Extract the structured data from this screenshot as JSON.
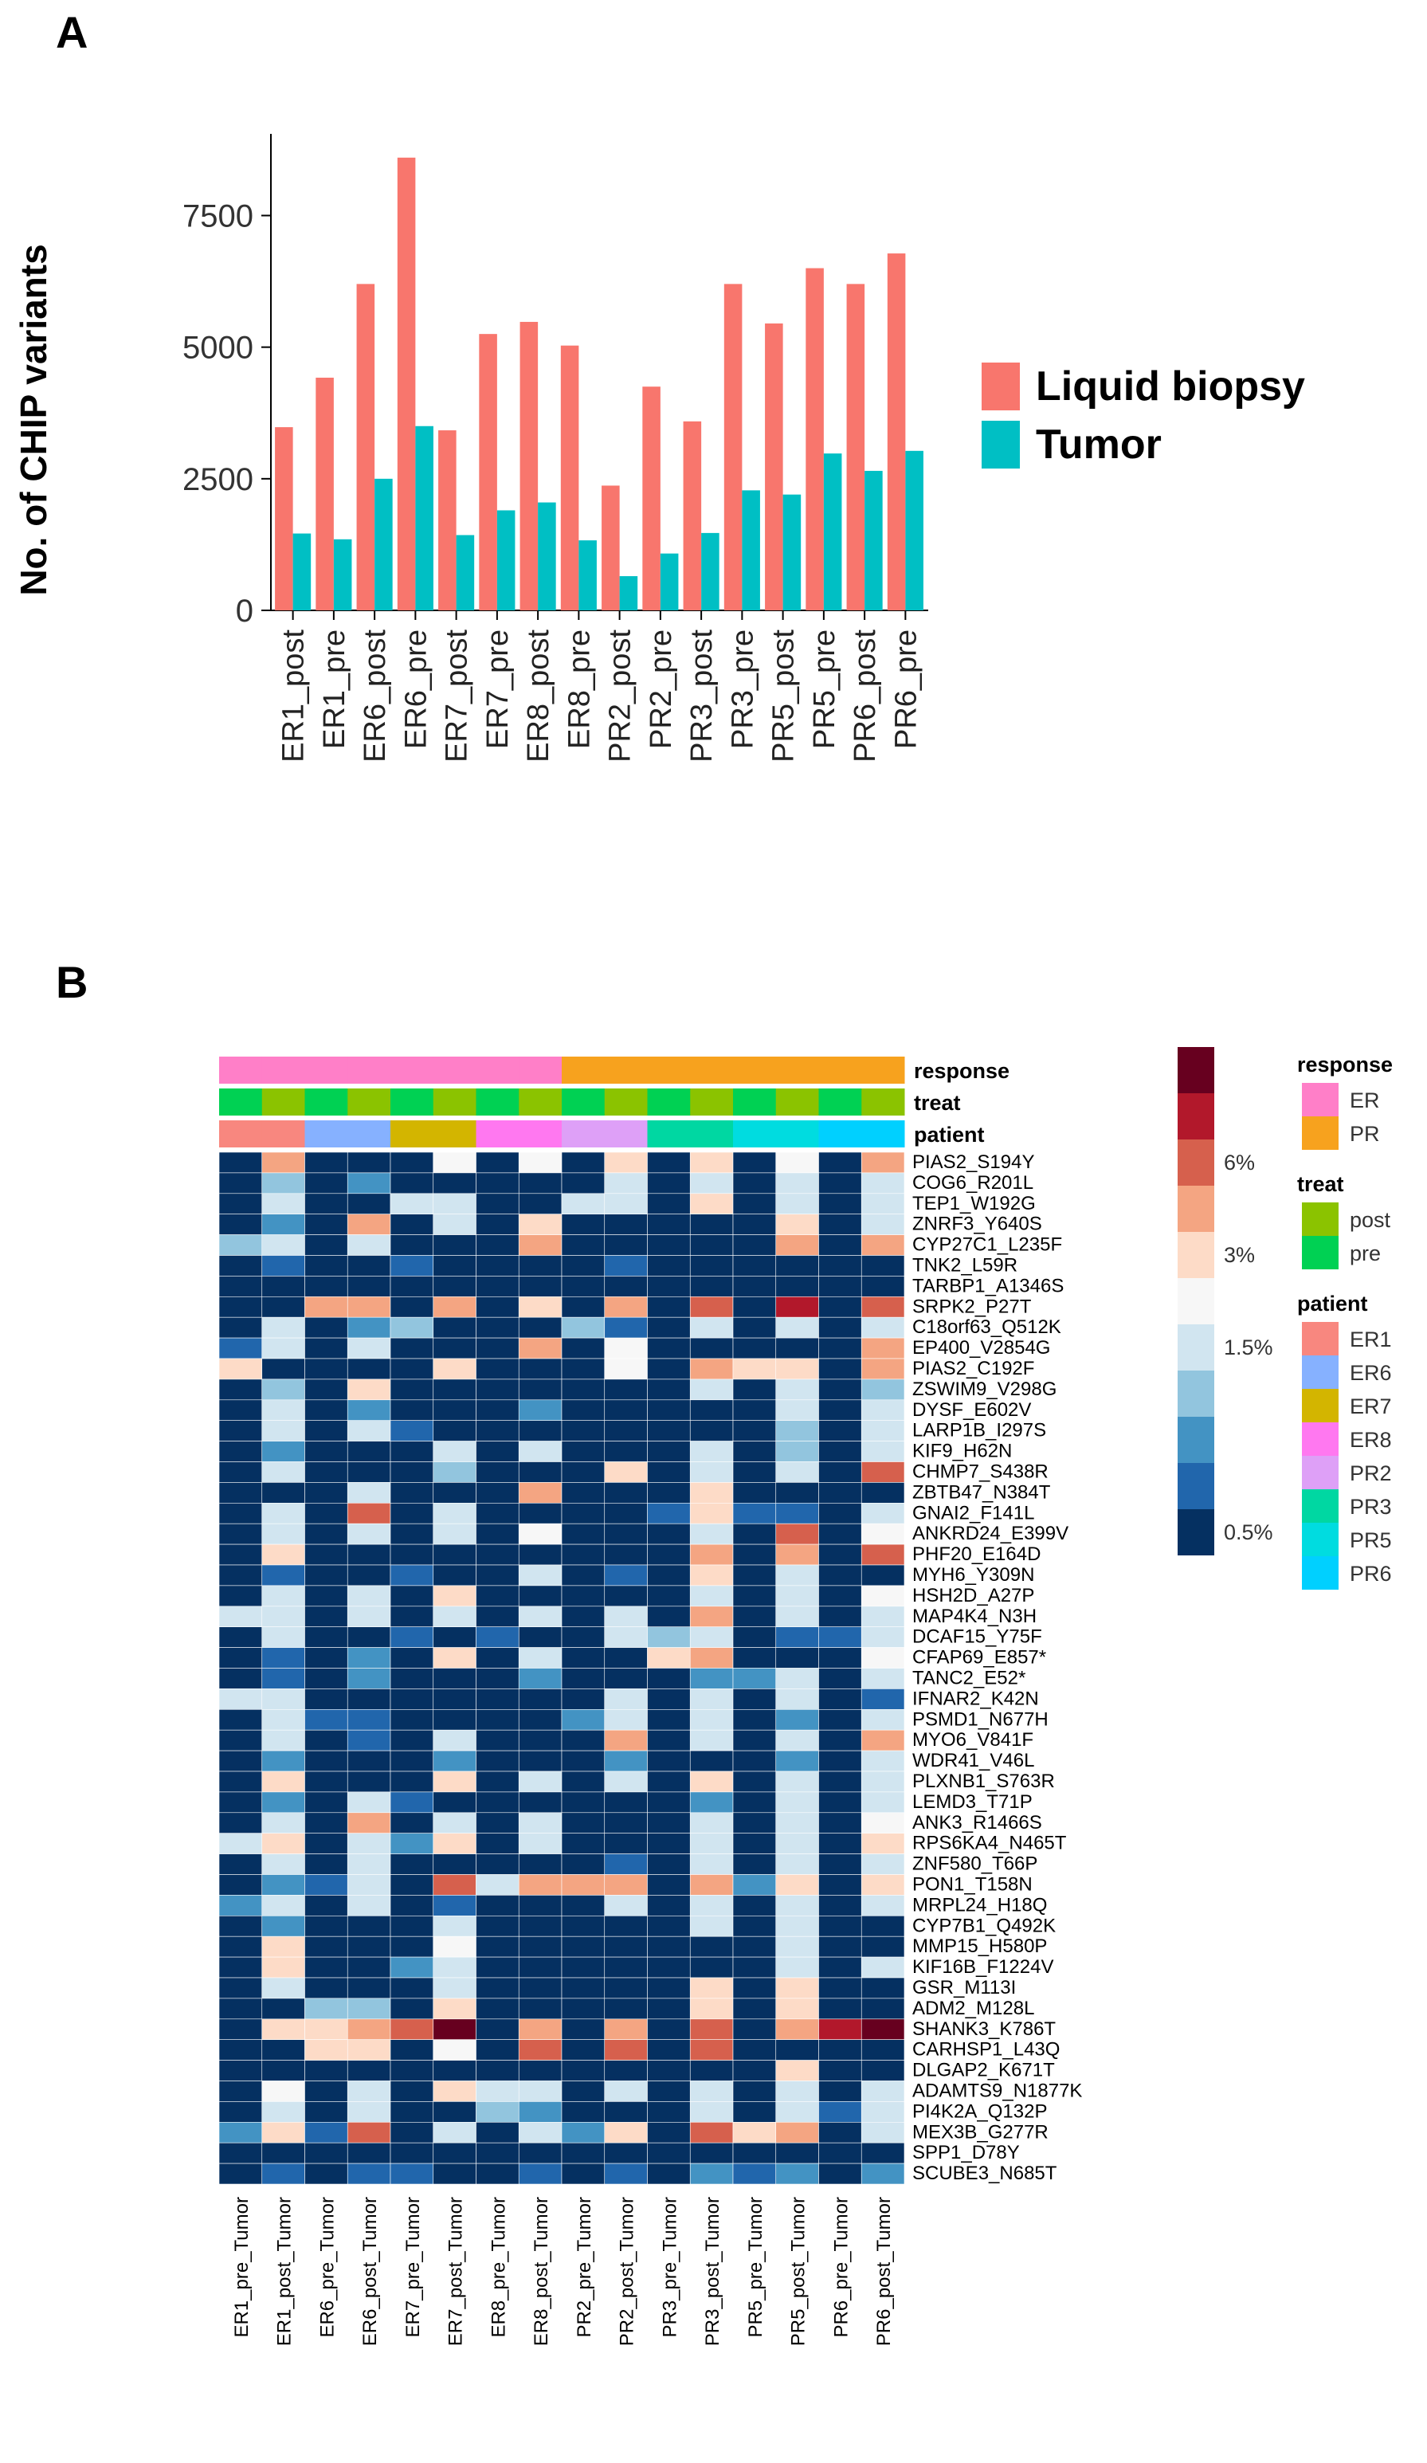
{
  "panel_a": {
    "label": "A",
    "ylabel": "No. of CHIP variants",
    "legend": [
      {
        "name": "Liquid biopsy",
        "color": "#F8766D"
      },
      {
        "name": "Tumor",
        "color": "#00BFC4"
      }
    ]
  },
  "panel_b": {
    "label": "B",
    "annotation_tracks": [
      "response",
      "treat",
      "patient"
    ],
    "legend_groups": [
      {
        "title": "response",
        "items": [
          {
            "label": "ER",
            "color": "#FF7FC8"
          },
          {
            "label": "PR",
            "color": "#F7A21E"
          }
        ]
      },
      {
        "title": "treat",
        "items": [
          {
            "label": "post",
            "color": "#8BC300"
          },
          {
            "label": "pre",
            "color": "#00D153"
          }
        ]
      },
      {
        "title": "patient",
        "items": [
          {
            "label": "ER1",
            "color": "#F8877F"
          },
          {
            "label": "ER6",
            "color": "#86B1FF"
          },
          {
            "label": "ER7",
            "color": "#D3B500"
          },
          {
            "label": "ER8",
            "color": "#FF78F0"
          },
          {
            "label": "PR2",
            "color": "#DEA0F7"
          },
          {
            "label": "PR3",
            "color": "#00D7A2"
          },
          {
            "label": "PR5",
            "color": "#00DCE0"
          },
          {
            "label": "PR6",
            "color": "#00D0FF"
          }
        ]
      }
    ],
    "color_scale": {
      "colors": [
        "#67001F",
        "#B2182B",
        "#D6604D",
        "#F4A582",
        "#FDDBC7",
        "#F7F7F7",
        "#D1E5F0",
        "#92C5DE",
        "#4393C3",
        "#2166AC",
        "#053061"
      ],
      "tick_labels": [
        "6%",
        "3%",
        "1.5%",
        "0.5%"
      ]
    }
  },
  "chart_data": [
    {
      "type": "bar",
      "title": "",
      "xlabel": "",
      "ylabel": "No. of CHIP variants",
      "ylim": [
        0,
        8900
      ],
      "yticks": [
        0,
        2500,
        5000,
        7500
      ],
      "categories": [
        "ER1_post",
        "ER1_pre",
        "ER6_post",
        "ER6_pre",
        "ER7_post",
        "ER7_pre",
        "ER8_post",
        "ER8_pre",
        "PR2_post",
        "PR2_pre",
        "PR3_post",
        "PR3_pre",
        "PR5_post",
        "PR5_pre",
        "PR6_post",
        "PR6_pre"
      ],
      "series": [
        {
          "name": "Liquid biopsy",
          "values": [
            3480,
            4420,
            6200,
            8600,
            3420,
            5250,
            5480,
            5030,
            2370,
            4250,
            3590,
            6200,
            5450,
            6500,
            6200,
            6780
          ]
        },
        {
          "name": "Tumor",
          "values": [
            1460,
            1350,
            2500,
            3500,
            1430,
            1900,
            2050,
            1330,
            650,
            1080,
            1470,
            2280,
            2200,
            2980,
            2650,
            3030
          ]
        }
      ]
    },
    {
      "type": "heatmap",
      "columns": [
        "ER1_pre_Tumor",
        "ER1_post_Tumor",
        "ER6_pre_Tumor",
        "ER6_post_Tumor",
        "ER7_pre_Tumor",
        "ER7_post_Tumor",
        "ER8_pre_Tumor",
        "ER8_post_Tumor",
        "PR2_pre_Tumor",
        "PR2_post_Tumor",
        "PR3_pre_Tumor",
        "PR3_post_Tumor",
        "PR5_pre_Tumor",
        "PR5_post_Tumor",
        "PR6_pre_Tumor",
        "PR6_post_Tumor"
      ],
      "annotations": {
        "response": [
          "ER",
          "ER",
          "ER",
          "ER",
          "ER",
          "ER",
          "ER",
          "ER",
          "PR",
          "PR",
          "PR",
          "PR",
          "PR",
          "PR",
          "PR",
          "PR"
        ],
        "treat": [
          "pre",
          "post",
          "pre",
          "post",
          "pre",
          "post",
          "pre",
          "post",
          "pre",
          "post",
          "pre",
          "post",
          "pre",
          "post",
          "pre",
          "post"
        ],
        "patient": [
          "ER1",
          "ER1",
          "ER6",
          "ER6",
          "ER7",
          "ER7",
          "ER8",
          "ER8",
          "PR2",
          "PR2",
          "PR3",
          "PR3",
          "PR5",
          "PR5",
          "PR6",
          "PR6"
        ]
      },
      "rows": [
        "PIAS2_S194Y",
        "COG6_R201L",
        "TEP1_W192G",
        "ZNRF3_Y640S",
        "CYP27C1_L235F",
        "TNK2_L59R",
        "TARBP1_A1346S",
        "SRPK2_P27T",
        "C18orf63_Q512K",
        "EP400_V2854G",
        "PIAS2_C192F",
        "ZSWIM9_V298G",
        "DYSF_E602V",
        "LARP1B_I297S",
        "KIF9_H62N",
        "CHMP7_S438R",
        "ZBTB47_N384T",
        "GNAI2_F141L",
        "ANKRD24_E399V",
        "PHF20_E164D",
        "MYH6_Y309N",
        "HSH2D_A27P",
        "MAP4K4_N3H",
        "DCAF15_Y75F",
        "CFAP69_E857*",
        "TANC2_E52*",
        "IFNAR2_K42N",
        "PSMD1_N677H",
        "MYO6_V841F",
        "WDR41_V46L",
        "PLXNB1_S763R",
        "LEMD3_T71P",
        "ANK3_R1466S",
        "RPS6KA4_N465T",
        "ZNF580_T66P",
        "PON1_T158N",
        "MRPL24_H18Q",
        "CYP7B1_Q492K",
        "MMP15_H580P",
        "KIF16B_F1224V",
        "GSR_M113I",
        "ADM2_M128L",
        "SHANK3_K786T",
        "CARHSP1_L43Q",
        "DLGAP2_K671T",
        "ADAMTS9_N1877K",
        "PI4K2A_Q132P",
        "MEX3B_G277R",
        "SPP1_D78Y",
        "SCUBE3_N685T"
      ],
      "color_level_note": "values are color-scale levels 0-10 (0 = darkest red, highest VAF; 10 = dark navy, lowest VAF)",
      "values": [
        [
          10,
          3,
          10,
          10,
          10,
          5,
          10,
          5,
          10,
          4,
          10,
          4,
          10,
          5,
          10,
          3
        ],
        [
          10,
          7,
          10,
          8,
          10,
          10,
          10,
          10,
          10,
          6,
          10,
          6,
          10,
          6,
          10,
          6
        ],
        [
          10,
          6,
          10,
          10,
          6,
          6,
          10,
          10,
          6,
          6,
          10,
          4,
          10,
          6,
          10,
          6
        ],
        [
          10,
          8,
          10,
          3,
          10,
          6,
          10,
          4,
          10,
          10,
          10,
          10,
          10,
          4,
          10,
          6
        ],
        [
          7,
          6,
          10,
          6,
          10,
          10,
          10,
          3,
          10,
          10,
          10,
          10,
          10,
          3,
          10,
          3
        ],
        [
          10,
          9,
          10,
          10,
          9,
          10,
          10,
          10,
          10,
          9,
          10,
          10,
          10,
          10,
          10,
          10
        ],
        [
          10,
          10,
          10,
          10,
          10,
          10,
          10,
          10,
          10,
          10,
          10,
          10,
          10,
          10,
          10,
          10
        ],
        [
          10,
          10,
          3,
          3,
          10,
          3,
          10,
          4,
          10,
          3,
          10,
          2,
          10,
          1,
          10,
          2
        ],
        [
          10,
          6,
          10,
          8,
          7,
          10,
          10,
          10,
          7,
          9,
          10,
          6,
          10,
          6,
          10,
          6
        ],
        [
          9,
          6,
          10,
          6,
          10,
          10,
          10,
          3,
          10,
          5,
          10,
          10,
          10,
          10,
          10,
          3
        ],
        [
          4,
          10,
          10,
          10,
          10,
          4,
          10,
          10,
          10,
          5,
          10,
          3,
          4,
          4,
          10,
          3
        ],
        [
          10,
          7,
          10,
          4,
          10,
          10,
          10,
          10,
          10,
          10,
          10,
          6,
          10,
          6,
          10,
          7
        ],
        [
          10,
          6,
          10,
          8,
          10,
          10,
          10,
          8,
          10,
          10,
          10,
          10,
          10,
          6,
          10,
          6
        ],
        [
          10,
          6,
          10,
          6,
          9,
          10,
          10,
          10,
          10,
          10,
          10,
          10,
          10,
          7,
          10,
          6
        ],
        [
          10,
          8,
          10,
          10,
          10,
          6,
          10,
          6,
          10,
          10,
          10,
          6,
          10,
          7,
          10,
          6
        ],
        [
          10,
          6,
          10,
          10,
          10,
          7,
          10,
          10,
          10,
          4,
          10,
          6,
          10,
          6,
          10,
          2
        ],
        [
          10,
          10,
          10,
          6,
          10,
          10,
          10,
          3,
          10,
          10,
          10,
          4,
          10,
          10,
          10,
          10
        ],
        [
          10,
          6,
          10,
          2,
          10,
          6,
          10,
          10,
          10,
          10,
          9,
          4,
          9,
          9,
          10,
          6
        ],
        [
          10,
          6,
          10,
          6,
          10,
          6,
          10,
          5,
          10,
          10,
          10,
          6,
          10,
          2,
          10,
          5
        ],
        [
          10,
          4,
          10,
          10,
          10,
          10,
          10,
          10,
          10,
          10,
          10,
          3,
          10,
          3,
          10,
          2
        ],
        [
          10,
          9,
          10,
          10,
          9,
          10,
          10,
          6,
          10,
          9,
          10,
          4,
          10,
          6,
          10,
          10
        ],
        [
          10,
          6,
          10,
          6,
          10,
          4,
          10,
          10,
          10,
          10,
          10,
          6,
          10,
          6,
          10,
          5
        ],
        [
          6,
          6,
          10,
          6,
          10,
          6,
          10,
          6,
          10,
          6,
          10,
          3,
          10,
          6,
          10,
          6
        ],
        [
          10,
          6,
          10,
          10,
          9,
          10,
          9,
          10,
          10,
          6,
          7,
          6,
          10,
          9,
          9,
          6
        ],
        [
          10,
          9,
          10,
          8,
          10,
          4,
          10,
          6,
          10,
          10,
          4,
          3,
          10,
          10,
          10,
          5
        ],
        [
          10,
          9,
          10,
          8,
          10,
          10,
          10,
          8,
          10,
          10,
          10,
          8,
          8,
          6,
          10,
          6
        ],
        [
          6,
          6,
          10,
          10,
          10,
          10,
          10,
          10,
          10,
          6,
          10,
          6,
          10,
          6,
          10,
          9
        ],
        [
          10,
          6,
          9,
          9,
          10,
          10,
          10,
          10,
          8,
          6,
          10,
          6,
          10,
          8,
          10,
          6
        ],
        [
          10,
          6,
          10,
          9,
          10,
          6,
          10,
          10,
          10,
          3,
          10,
          6,
          10,
          6,
          10,
          3
        ],
        [
          10,
          8,
          10,
          10,
          10,
          8,
          10,
          10,
          10,
          8,
          10,
          10,
          10,
          8,
          10,
          6
        ],
        [
          10,
          4,
          10,
          10,
          10,
          4,
          10,
          6,
          10,
          6,
          10,
          4,
          10,
          6,
          10,
          6
        ],
        [
          10,
          8,
          10,
          6,
          9,
          10,
          10,
          10,
          10,
          10,
          10,
          8,
          10,
          6,
          10,
          6
        ],
        [
          10,
          6,
          10,
          3,
          10,
          6,
          10,
          6,
          10,
          10,
          10,
          6,
          10,
          6,
          10,
          5
        ],
        [
          6,
          4,
          10,
          6,
          8,
          4,
          10,
          6,
          10,
          10,
          10,
          6,
          10,
          6,
          10,
          4
        ],
        [
          10,
          6,
          10,
          6,
          10,
          10,
          10,
          10,
          10,
          9,
          10,
          6,
          10,
          6,
          10,
          6
        ],
        [
          10,
          8,
          9,
          6,
          10,
          2,
          6,
          3,
          3,
          3,
          10,
          3,
          8,
          4,
          10,
          4
        ],
        [
          8,
          6,
          10,
          6,
          10,
          9,
          10,
          10,
          10,
          6,
          10,
          6,
          10,
          6,
          10,
          6
        ],
        [
          10,
          8,
          10,
          10,
          10,
          6,
          10,
          10,
          10,
          10,
          10,
          6,
          10,
          6,
          10,
          10
        ],
        [
          10,
          4,
          10,
          10,
          10,
          5,
          10,
          10,
          10,
          10,
          10,
          10,
          10,
          6,
          10,
          10
        ],
        [
          10,
          4,
          10,
          10,
          8,
          6,
          10,
          10,
          10,
          10,
          10,
          10,
          10,
          6,
          10,
          6
        ],
        [
          10,
          6,
          10,
          10,
          10,
          6,
          10,
          10,
          10,
          10,
          10,
          4,
          10,
          4,
          10,
          10
        ],
        [
          10,
          10,
          7,
          7,
          10,
          4,
          10,
          10,
          10,
          10,
          10,
          4,
          10,
          4,
          10,
          10
        ],
        [
          10,
          4,
          4,
          3,
          2,
          0,
          10,
          3,
          10,
          3,
          10,
          2,
          10,
          3,
          1,
          0
        ],
        [
          10,
          10,
          4,
          4,
          10,
          5,
          10,
          2,
          10,
          2,
          10,
          2,
          10,
          10,
          10,
          10
        ],
        [
          10,
          10,
          10,
          10,
          10,
          10,
          10,
          10,
          10,
          10,
          10,
          10,
          10,
          4,
          10,
          10
        ],
        [
          10,
          5,
          10,
          6,
          10,
          4,
          6,
          6,
          10,
          6,
          10,
          6,
          10,
          6,
          10,
          6
        ],
        [
          10,
          6,
          10,
          6,
          10,
          10,
          7,
          8,
          10,
          10,
          10,
          6,
          10,
          6,
          9,
          6
        ],
        [
          8,
          4,
          9,
          2,
          10,
          6,
          10,
          6,
          8,
          4,
          10,
          2,
          4,
          3,
          10,
          6
        ],
        [
          10,
          10,
          10,
          10,
          10,
          10,
          10,
          10,
          10,
          10,
          10,
          10,
          10,
          10,
          10,
          10
        ],
        [
          10,
          9,
          10,
          9,
          9,
          10,
          10,
          9,
          10,
          9,
          10,
          8,
          9,
          8,
          10,
          8
        ]
      ]
    }
  ]
}
